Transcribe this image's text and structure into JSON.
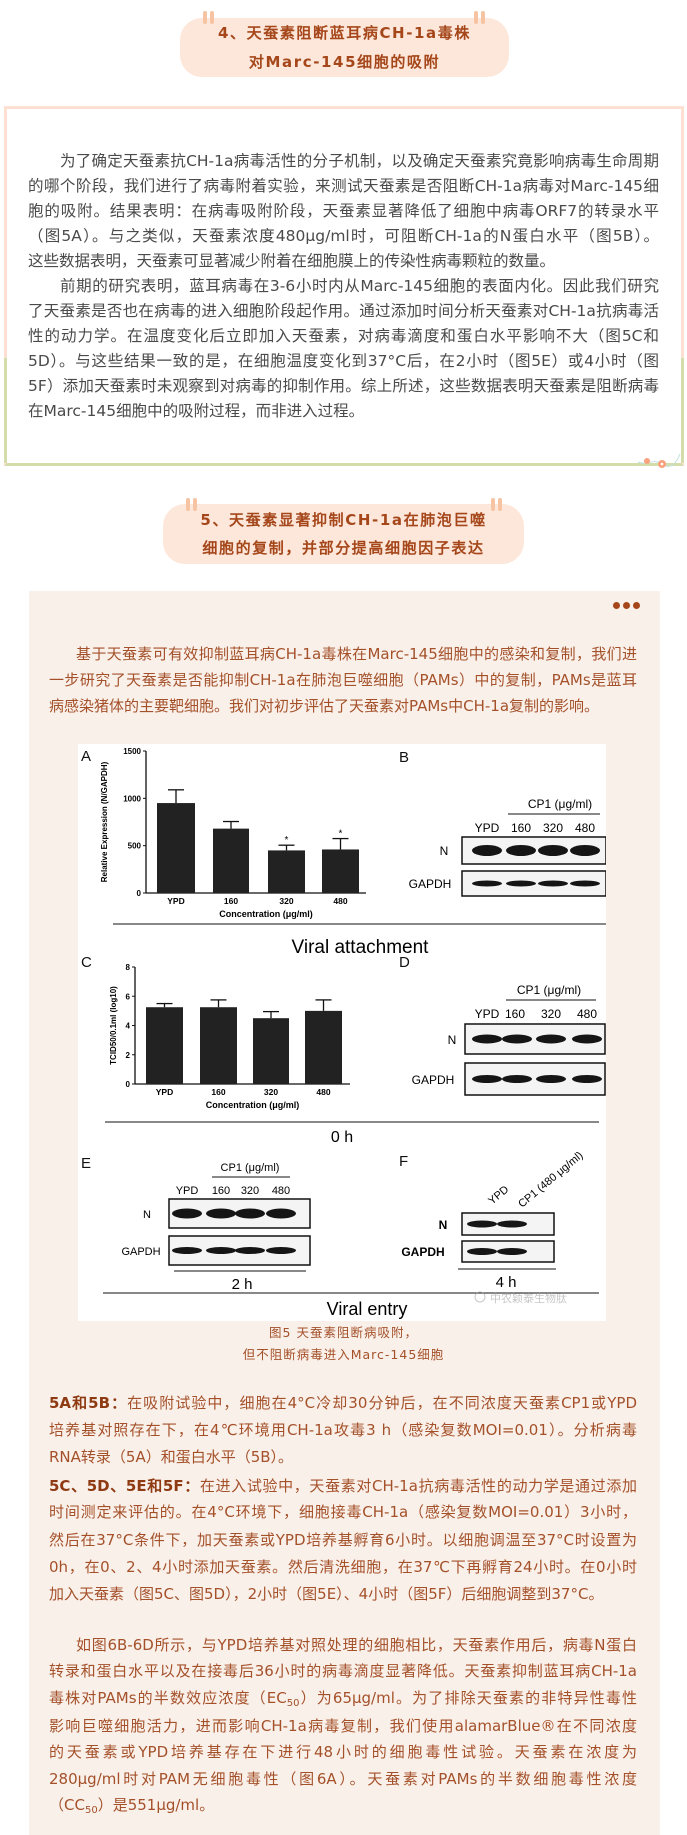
{
  "colors": {
    "heading_bg": "#fde7da",
    "heading_text": "#a5471b",
    "section_bg": "#faf0ea",
    "body_text_section4": "#4a4a4a",
    "body_text_section5": "#a4512a",
    "border_peach": "#fde0d2",
    "border_green": "#d4ddaa"
  },
  "section4": {
    "heading": [
      "4、天蚕素阻断蓝耳病CH-1a毒株",
      "对Marc-145细胞的吸附"
    ],
    "paragraphs": [
      [
        "为了确定天蚕素抗CH-1a病毒活性的分子机制，以及确定天蚕素究竟影响病毒生命周期",
        "的哪个阶段，我们进行了病毒附着实验，来测试天蚕素是否阻断CH-1a病毒对Marc-145细",
        "胞的吸附。结果表明：在病毒吸附阶段，天蚕素显著降低了细胞中病毒ORF7的转录水平",
        "（图5A）。与之类似，天蚕素浓度480μg/ml时，可阻断CH-1a的N蛋白水平（图5B）。",
        "这些数据表明，天蚕素可显著减少附着在细胞膜上的传染性病毒颗粒的数量。"
      ],
      [
        "前期的研究表明，蓝耳病毒在3-6小时内从Marc-145细胞的表面内化。因此我们研究",
        "了天蚕素是否也在病毒的进入细胞阶段起作用。通过添加时间分析天蚕素对CH-1a抗病毒活",
        "性的动力学。在温度变化后立即加入天蚕素，对病毒滴度和蛋白水平影响不大（图5C和",
        "5D）。与这些结果一致的是，在细胞温度变化到37°C后，在2小时（图5E）或4小时（图",
        "5F）添加天蚕素时未观察到对病毒的抑制作用。综上所述，这些数据表明天蚕素是阻断病毒",
        "在Marc-145细胞中的吸附过程，而非进入过程。"
      ]
    ]
  },
  "section5": {
    "heading": [
      "5、天蚕素显著抑制CH-1a在肺泡巨噬",
      "细胞的复制，并部分提高细胞因子表达"
    ],
    "menu_icon": "more-dots-icon",
    "intro": [
      "基于天蚕素可有效抑制蓝耳病CH-1a毒株在Marc-145细胞中的感染和复制，我们进",
      "一步研究了天蚕素是否能抑制CH-1a在肺泡巨噬细胞（PAMs）中的复制，PAMs是蓝耳",
      "病感染猪体的主要靶细胞。我们对初步评估了天蚕素对PAMs中CH-1a复制的影响。"
    ],
    "figure": {
      "panel_labels": [
        "A",
        "B",
        "C",
        "D",
        "E",
        "F"
      ],
      "cp1_label": "CP1 (μg/ml)",
      "lanes": [
        "YPD",
        "160",
        "320",
        "480"
      ],
      "blot_rows": [
        "N",
        "GAPDH"
      ],
      "f_lanes": [
        "YPD",
        "CP1 (480 μg/ml)"
      ],
      "section_titles": [
        "Viral attachment",
        "0 h",
        "Viral entry"
      ],
      "time_labels": [
        "2 h",
        "4 h"
      ],
      "watermark": "中农颖泰生物肽"
    },
    "chart_data": [
      {
        "type": "bar",
        "panel": "A",
        "categories": [
          "YPD",
          "160",
          "320",
          "480"
        ],
        "values": [
          950,
          680,
          450,
          460
        ],
        "errors": [
          140,
          75,
          55,
          115
        ],
        "significant": [
          false,
          false,
          true,
          true
        ],
        "significance_mark": "*",
        "xlabel": "Concentration (μg/ml)",
        "ylabel": "Relative Expression (N/GAPDH)",
        "ylim": [
          0,
          1500
        ],
        "yticks": [
          "0",
          "500",
          "1000",
          "1500"
        ],
        "grid": false
      },
      {
        "type": "bar",
        "panel": "C",
        "categories": [
          "YPD",
          "160",
          "320",
          "480"
        ],
        "values": [
          5.25,
          5.25,
          4.5,
          5.0
        ],
        "errors": [
          0.25,
          0.5,
          0.45,
          0.75
        ],
        "xlabel": "Concentration (μg/ml)",
        "ylabel": "TCID50/0.1ml (log10)",
        "ylim": [
          0,
          8
        ],
        "yticks": [
          "0",
          "2",
          "4",
          "6",
          "8"
        ],
        "grid": false
      }
    ],
    "caption": [
      "图5 天蚕素阻断病吸附，",
      "但不阻断病毒进入Marc-145细胞"
    ],
    "notes": [
      {
        "label": "5A和5B：",
        "lines": [
          "在吸附试验中，细胞在4°C冷却30分钟后，在不同浓度天蚕素CP1或YPD",
          "培养基对照存在下，在4℃环境用CH-1a攻毒3 h（感染复数MOI=0.01）。分析病毒",
          "RNA转录（5A）和蛋白水平（5B）。"
        ]
      },
      {
        "label": "5C、5D、5E和5F：",
        "lines": [
          "在进入试验中，天蚕素对CH-1a抗病毒活性的动力学是通过添加",
          "时间测定来评估的。在4°C环境下，细胞接毒CH-1a（感染复数MOI=0.01）3小时，",
          "然后在37°C条件下，加天蚕素或YPD培养基孵育6小时。以细胞调温至37°C时设置为",
          "0h，在0、2、4小时添加天蚕素。然后清洗细胞，在37℃下再孵育24小时。在0小时",
          "加入天蚕素（图5C、图5D），2小时（图5E）、4小时（图5F）后细胞调整到37°C。"
        ]
      }
    ],
    "final": [
      {
        "pre": "如图6B-6D所示，与YPD培养基对照处理的细胞相比，天蚕素作用后，病毒N蛋白"
      },
      {
        "pre": "转录和蛋白水平以及在接毒后36小时的病毒滴度显著降低。天蚕素抑制蓝耳病CH-1a"
      },
      {
        "pre": "毒株对PAMs的半数效应浓度（EC",
        "sub": "50",
        "post": "）为65μg/ml。为了排除天蚕素的非特异性毒性"
      },
      {
        "pre": "影响巨噬细胞活力，进而影响CH-1a病毒复制，我们使用alamarBlue®在不同浓度"
      },
      {
        "pre": "的天蚕素或YPD培养基存在下进行48小时的细胞毒性试验。天蚕素在浓度为"
      },
      {
        "pre": "280μg/ml时对PAM无细胞毒性（图6A）。天蚕素对PAMs的半数细胞毒性浓度"
      },
      {
        "pre": "（CC",
        "sub": "50",
        "post": "）是551μg/ml。"
      }
    ]
  }
}
